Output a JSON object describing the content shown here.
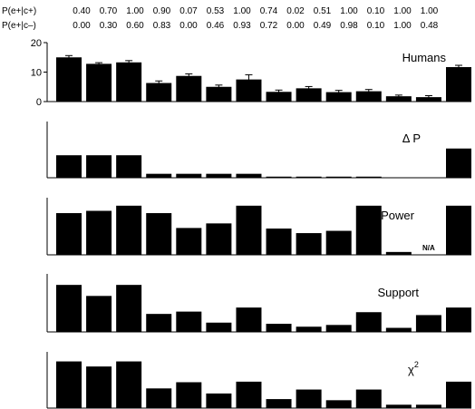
{
  "header_rows": [
    {
      "label": "P(e+|c+)",
      "values": [
        "0.40",
        "0.70",
        "1.00",
        "0.90",
        "0.07",
        "0.53",
        "1.00",
        "0.74",
        "0.02",
        "0.51",
        "1.00",
        "0.10",
        "1.00",
        "1.00"
      ]
    },
    {
      "label": "P(e+|c–)",
      "values": [
        "0.00",
        "0.30",
        "0.60",
        "0.83",
        "0.00",
        "0.46",
        "0.93",
        "0.72",
        "0.00",
        "0.49",
        "0.98",
        "0.10",
        "1.00",
        "0.48"
      ]
    }
  ],
  "chart_data": [
    {
      "type": "bar",
      "panel_label": "Humans",
      "yticks": [
        0,
        10,
        20
      ],
      "ylim": [
        0,
        20
      ],
      "values": [
        15,
        12.8,
        13.3,
        6.3,
        8.7,
        5,
        7.5,
        3.3,
        4.5,
        3.2,
        3.5,
        1.8,
        1.5,
        11.7
      ],
      "errors": [
        0.6,
        0.4,
        0.6,
        0.7,
        0.7,
        0.6,
        1.6,
        0.6,
        0.6,
        0.6,
        0.6,
        0.4,
        0.5,
        0.6
      ]
    },
    {
      "type": "bar",
      "panel_label": "Δ P",
      "ylim": [
        0,
        1
      ],
      "values": [
        0.4,
        0.4,
        0.4,
        0.07,
        0.07,
        0.07,
        0.07,
        0.02,
        0.02,
        0.02,
        0.02,
        0.0,
        0.0,
        0.52
      ]
    },
    {
      "type": "bar",
      "panel_label": "Power",
      "ylim": [
        0,
        1
      ],
      "values": [
        0.73,
        0.77,
        0.86,
        0.73,
        0.47,
        0.55,
        0.86,
        0.46,
        0.38,
        0.42,
        0.86,
        0.05,
        null,
        0.86
      ],
      "na_label": "N/A"
    },
    {
      "type": "bar",
      "panel_label": "Support",
      "ylim": [
        0,
        1
      ],
      "values": [
        0.81,
        0.62,
        0.81,
        0.31,
        0.35,
        0.16,
        0.42,
        0.14,
        0.09,
        0.12,
        0.34,
        0.07,
        0.29,
        0.42
      ]
    },
    {
      "type": "bar",
      "panel_label": "χ",
      "panel_label_sup": "2",
      "ylim": [
        0,
        1
      ],
      "values": [
        0.83,
        0.74,
        0.83,
        0.35,
        0.46,
        0.26,
        0.47,
        0.16,
        0.33,
        0.14,
        0.33,
        0.06,
        0.06,
        0.47
      ]
    }
  ]
}
